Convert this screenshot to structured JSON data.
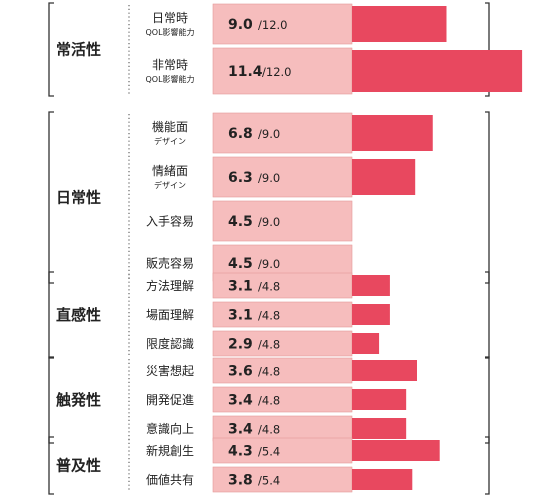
{
  "chart_data": {
    "type": "bar",
    "colors": {
      "track": "#f6bdbd",
      "track_border": "#e59a9a",
      "bar": "#e8485f",
      "bracket": "#333333",
      "dots": "#666666"
    },
    "groups": [
      {
        "title": "常活性",
        "items": [
          {
            "label": "日常時",
            "sub": "QOL影響能力",
            "value": 9.0,
            "value_text": "9.0",
            "max_text": "/12.0",
            "max": 12.0
          },
          {
            "label": "非常時",
            "sub": "QOL影響能力",
            "value": 11.4,
            "value_text": "11.4",
            "max_text": "/12.0",
            "max": 12.0
          }
        ]
      },
      {
        "title": "日常性",
        "items": [
          {
            "label": "機能面",
            "sub": "デザイン",
            "value": 6.8,
            "value_text": "6.8",
            "max_text": "/9.0",
            "max": 9.0
          },
          {
            "label": "情緒面",
            "sub": "デザイン",
            "value": 6.3,
            "value_text": "6.3",
            "max_text": "/9.0",
            "max": 9.0
          },
          {
            "label": "入手容易",
            "sub": "",
            "value": 4.5,
            "value_text": "4.5",
            "max_text": "/9.0",
            "max": 9.0
          },
          {
            "label": "販売容易",
            "sub": "",
            "value": 4.5,
            "value_text": "4.5",
            "max_text": "/9.0",
            "max": 9.0
          }
        ]
      },
      {
        "title": "直感性",
        "items": [
          {
            "label": "方法理解",
            "sub": "",
            "value": 3.1,
            "value_text": "3.1",
            "max_text": "/4.8",
            "max": 4.8
          },
          {
            "label": "場面理解",
            "sub": "",
            "value": 3.1,
            "value_text": "3.1",
            "max_text": "/4.8",
            "max": 4.8
          },
          {
            "label": "限度認識",
            "sub": "",
            "value": 2.9,
            "value_text": "2.9",
            "max_text": "/4.8",
            "max": 4.8
          }
        ]
      },
      {
        "title": "触発性",
        "items": [
          {
            "label": "災害想起",
            "sub": "",
            "value": 3.6,
            "value_text": "3.6",
            "max_text": "/4.8",
            "max": 4.8
          },
          {
            "label": "開発促進",
            "sub": "",
            "value": 3.4,
            "value_text": "3.4",
            "max_text": "/4.8",
            "max": 4.8
          },
          {
            "label": "意識向上",
            "sub": "",
            "value": 3.4,
            "value_text": "3.4",
            "max_text": "/4.8",
            "max": 4.8
          }
        ]
      },
      {
        "title": "普及性",
        "items": [
          {
            "label": "新規創生",
            "sub": "",
            "value": 4.3,
            "value_text": "4.3",
            "max_text": "/5.4",
            "max": 5.4
          },
          {
            "label": "価値共有",
            "sub": "",
            "value": 3.8,
            "value_text": "3.8",
            "max_text": "/5.4",
            "max": 5.4
          }
        ]
      }
    ]
  }
}
